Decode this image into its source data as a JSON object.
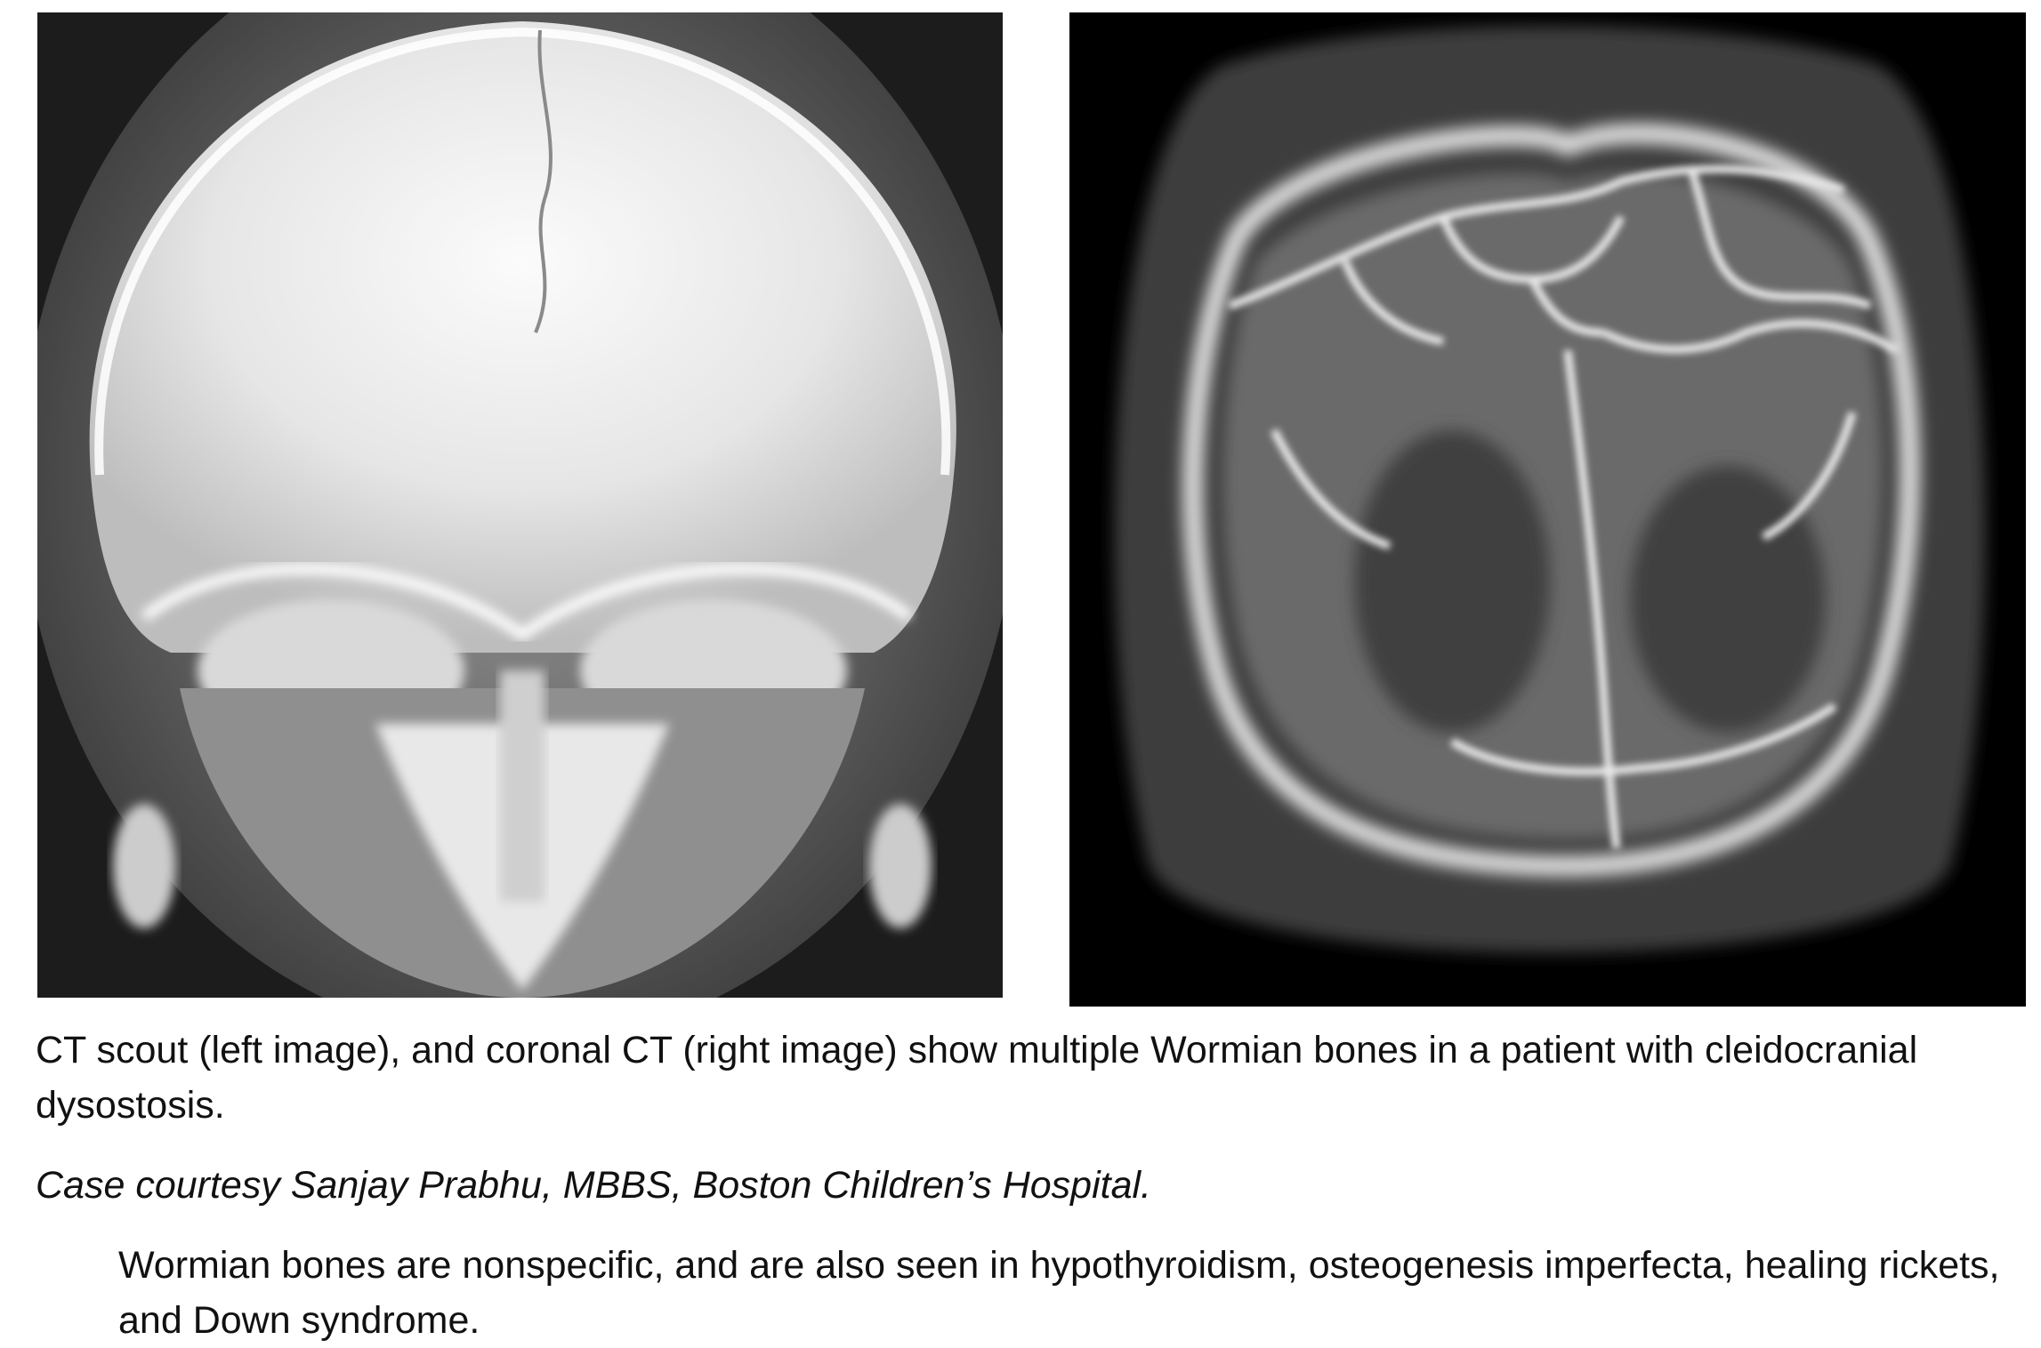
{
  "caption": "CT scout (left image), and coronal CT (right image) show multiple Wormian bones in a patient with cleidocranial dysostosis.",
  "credit": "Case courtesy Sanjay Prabhu, MBBS, Boston Children’s Hospital.",
  "note": "Wormian bones are nonspecific, and are also seen in hypothyroidism, osteogenesis imperfecta, healing rickets, and Down syndrome.",
  "colors": {
    "background": "#ffffff",
    "text": "#111111",
    "film_black": "#000000",
    "bone_white": "#f2f2f2",
    "ct_gray": "#4a4a4a"
  },
  "figures": {
    "left": {
      "icon": "skull-radiograph-icon"
    },
    "right": {
      "icon": "skull-ct-icon"
    }
  }
}
